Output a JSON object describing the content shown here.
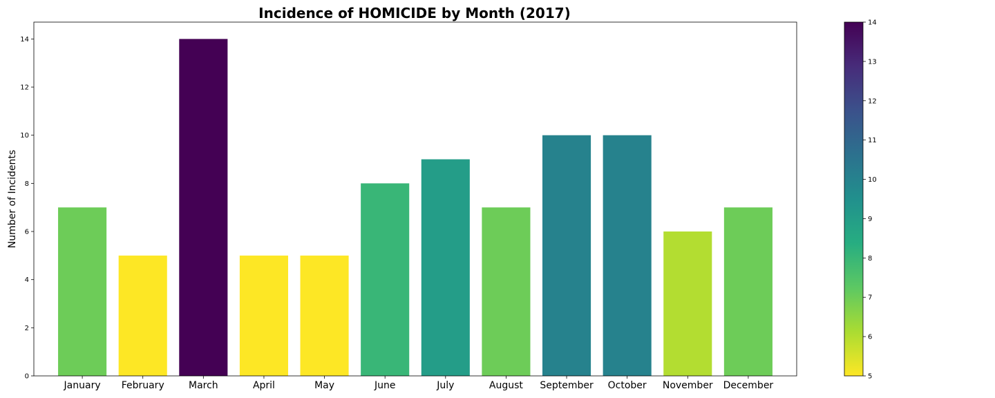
{
  "chart_data": {
    "type": "bar",
    "title": "Incidence of HOMICIDE by Month (2017)",
    "xlabel": "",
    "ylabel": "Number of Incidents",
    "categories": [
      "January",
      "February",
      "March",
      "April",
      "May",
      "June",
      "July",
      "August",
      "September",
      "October",
      "November",
      "December"
    ],
    "values": [
      7,
      5,
      14,
      5,
      5,
      8,
      9,
      7,
      10,
      10,
      6,
      7
    ],
    "ylim": [
      0,
      14.7
    ],
    "yticks": [
      "0",
      "2",
      "4",
      "6",
      "8",
      "10",
      "12",
      "14"
    ],
    "grid": false,
    "legend": "none",
    "colormap": "viridis_r",
    "colorbar": {
      "range": [
        5,
        14
      ],
      "ticks": [
        "5",
        "6",
        "7",
        "8",
        "9",
        "10",
        "11",
        "12",
        "13",
        "14"
      ],
      "placement": "right"
    }
  }
}
